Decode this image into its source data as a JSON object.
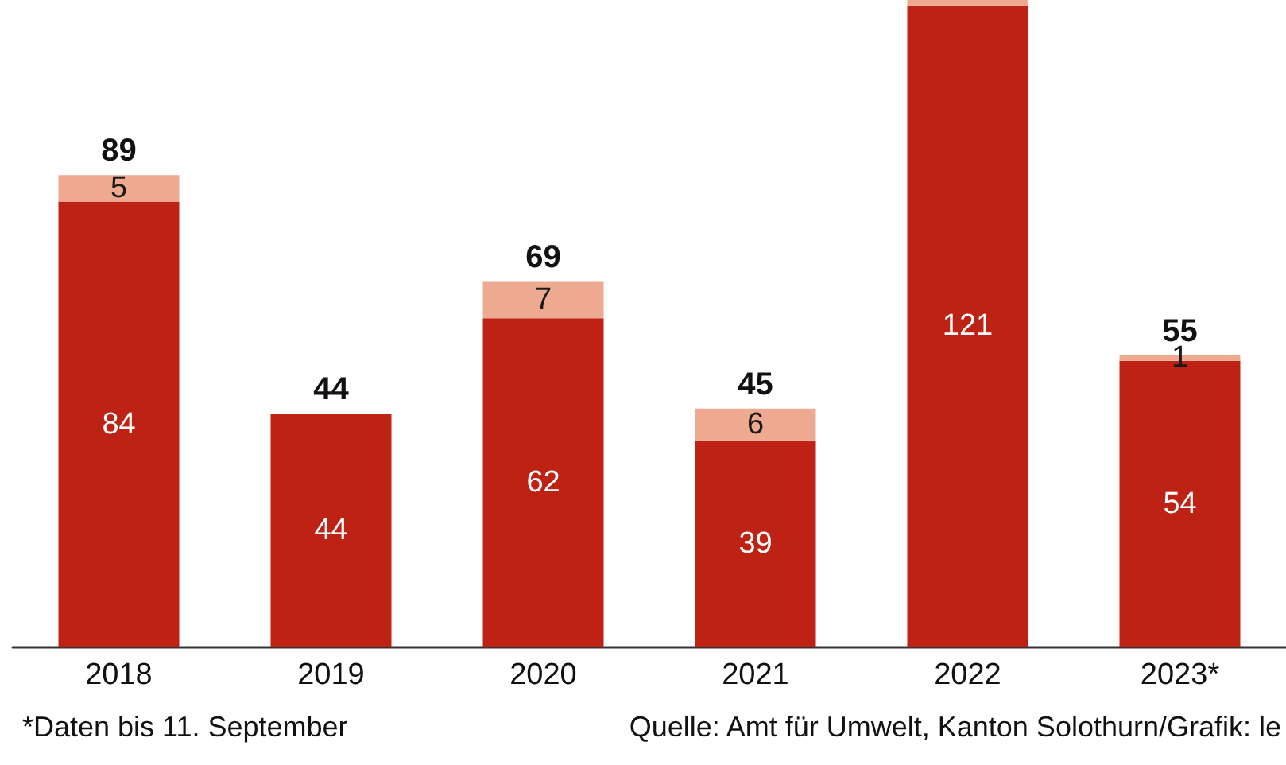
{
  "chart_data": {
    "type": "bar",
    "stacked": true,
    "categories": [
      "2018",
      "2019",
      "2020",
      "2021",
      "2022",
      "2023*"
    ],
    "series": [
      {
        "color": "#be2214",
        "values": [
          84,
          44,
          62,
          39,
          121,
          54
        ],
        "value_labels": [
          "84",
          "44",
          "62",
          "39",
          "121",
          "54"
        ]
      },
      {
        "color": "#eeaa90",
        "values": [
          5,
          0,
          7,
          6,
          1,
          1
        ],
        "value_labels": [
          "5",
          null,
          "7",
          "6",
          null,
          "1"
        ]
      }
    ],
    "totals": [
      "89",
      "44",
      "69",
      "45",
      null,
      "55"
    ],
    "ylim": [
      0,
      122
    ],
    "tick_labels": "x",
    "annotations": [
      "*Daten bis 11. September",
      "Quelle: Amt für Umwelt, Kanton Solothurn/Grafik: le"
    ]
  }
}
